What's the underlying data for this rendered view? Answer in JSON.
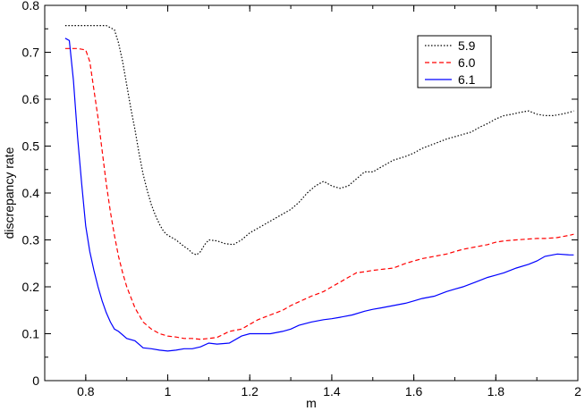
{
  "chart_data": {
    "type": "line",
    "xlabel": "m",
    "ylabel": "discrepancy rate",
    "xlim": [
      0.7,
      2.0
    ],
    "ylim": [
      0,
      0.8
    ],
    "xticks": [
      0.8,
      1.0,
      1.2,
      1.4,
      1.6,
      1.8,
      2.0
    ],
    "xtick_labels": [
      "0.8",
      "1",
      "1.2",
      "1.4",
      "1.6",
      "1.8",
      "2"
    ],
    "yticks": [
      0,
      0.1,
      0.2,
      0.3,
      0.4,
      0.5,
      0.6,
      0.7,
      0.8
    ],
    "ytick_labels": [
      "0",
      "0.1",
      "0.2",
      "0.3",
      "0.4",
      "0.5",
      "0.6",
      "0.7",
      "0.8"
    ],
    "grid": false,
    "legend_position": "top-right",
    "series": [
      {
        "name": "5.9",
        "color": "#000000",
        "dash": "dotted",
        "x": [
          0.75,
          0.78,
          0.82,
          0.85,
          0.87,
          0.88,
          0.89,
          0.9,
          0.91,
          0.92,
          0.93,
          0.94,
          0.95,
          0.96,
          0.97,
          0.98,
          0.99,
          1.0,
          1.01,
          1.02,
          1.03,
          1.04,
          1.05,
          1.06,
          1.07,
          1.08,
          1.09,
          1.1,
          1.12,
          1.14,
          1.16,
          1.18,
          1.2,
          1.22,
          1.25,
          1.28,
          1.3,
          1.32,
          1.34,
          1.36,
          1.38,
          1.4,
          1.42,
          1.44,
          1.46,
          1.48,
          1.5,
          1.52,
          1.55,
          1.58,
          1.6,
          1.62,
          1.65,
          1.68,
          1.7,
          1.72,
          1.74,
          1.76,
          1.78,
          1.8,
          1.82,
          1.84,
          1.86,
          1.88,
          1.9,
          1.92,
          1.94,
          1.96,
          1.98,
          1.99
        ],
        "y": [
          0.757,
          0.757,
          0.757,
          0.757,
          0.748,
          0.72,
          0.68,
          0.63,
          0.58,
          0.535,
          0.485,
          0.44,
          0.405,
          0.375,
          0.352,
          0.333,
          0.318,
          0.31,
          0.305,
          0.3,
          0.293,
          0.286,
          0.28,
          0.272,
          0.268,
          0.275,
          0.29,
          0.3,
          0.298,
          0.292,
          0.29,
          0.3,
          0.315,
          0.325,
          0.34,
          0.355,
          0.365,
          0.38,
          0.4,
          0.415,
          0.425,
          0.415,
          0.41,
          0.415,
          0.43,
          0.445,
          0.445,
          0.455,
          0.47,
          0.478,
          0.485,
          0.495,
          0.505,
          0.515,
          0.52,
          0.525,
          0.53,
          0.54,
          0.548,
          0.558,
          0.565,
          0.568,
          0.572,
          0.575,
          0.568,
          0.565,
          0.565,
          0.568,
          0.572,
          0.575
        ]
      },
      {
        "name": "6.0",
        "color": "#ff0000",
        "dash": "dashed",
        "x": [
          0.75,
          0.78,
          0.8,
          0.81,
          0.82,
          0.83,
          0.84,
          0.85,
          0.86,
          0.87,
          0.88,
          0.89,
          0.9,
          0.92,
          0.94,
          0.96,
          0.98,
          1.0,
          1.02,
          1.04,
          1.06,
          1.08,
          1.1,
          1.12,
          1.15,
          1.18,
          1.2,
          1.22,
          1.25,
          1.28,
          1.3,
          1.32,
          1.35,
          1.38,
          1.4,
          1.42,
          1.44,
          1.46,
          1.48,
          1.5,
          1.55,
          1.58,
          1.6,
          1.62,
          1.65,
          1.68,
          1.7,
          1.72,
          1.75,
          1.78,
          1.8,
          1.82,
          1.85,
          1.88,
          1.9,
          1.92,
          1.95,
          1.98,
          1.99
        ],
        "y": [
          0.708,
          0.708,
          0.705,
          0.68,
          0.62,
          0.56,
          0.49,
          0.42,
          0.36,
          0.31,
          0.265,
          0.23,
          0.2,
          0.155,
          0.125,
          0.11,
          0.1,
          0.095,
          0.093,
          0.09,
          0.09,
          0.088,
          0.09,
          0.092,
          0.105,
          0.11,
          0.12,
          0.13,
          0.14,
          0.15,
          0.16,
          0.168,
          0.18,
          0.19,
          0.2,
          0.21,
          0.22,
          0.23,
          0.232,
          0.235,
          0.24,
          0.25,
          0.255,
          0.26,
          0.265,
          0.27,
          0.275,
          0.28,
          0.285,
          0.29,
          0.295,
          0.298,
          0.3,
          0.302,
          0.303,
          0.303,
          0.305,
          0.31,
          0.312
        ]
      },
      {
        "name": "6.1",
        "color": "#0000ff",
        "dash": "solid",
        "x": [
          0.75,
          0.76,
          0.77,
          0.78,
          0.79,
          0.8,
          0.81,
          0.82,
          0.83,
          0.84,
          0.85,
          0.86,
          0.87,
          0.88,
          0.9,
          0.92,
          0.94,
          0.96,
          0.98,
          1.0,
          1.02,
          1.04,
          1.06,
          1.08,
          1.1,
          1.12,
          1.15,
          1.18,
          1.2,
          1.22,
          1.25,
          1.28,
          1.3,
          1.32,
          1.35,
          1.38,
          1.4,
          1.42,
          1.45,
          1.48,
          1.5,
          1.52,
          1.55,
          1.58,
          1.6,
          1.62,
          1.65,
          1.68,
          1.7,
          1.72,
          1.75,
          1.78,
          1.8,
          1.82,
          1.85,
          1.88,
          1.9,
          1.92,
          1.95,
          1.98,
          1.99
        ],
        "y": [
          0.73,
          0.725,
          0.64,
          0.52,
          0.42,
          0.33,
          0.275,
          0.235,
          0.2,
          0.17,
          0.145,
          0.125,
          0.11,
          0.105,
          0.09,
          0.085,
          0.07,
          0.068,
          0.065,
          0.063,
          0.065,
          0.068,
          0.068,
          0.072,
          0.08,
          0.078,
          0.08,
          0.095,
          0.1,
          0.1,
          0.1,
          0.105,
          0.11,
          0.118,
          0.125,
          0.13,
          0.132,
          0.135,
          0.14,
          0.148,
          0.152,
          0.155,
          0.16,
          0.165,
          0.17,
          0.175,
          0.18,
          0.19,
          0.195,
          0.2,
          0.21,
          0.22,
          0.225,
          0.23,
          0.24,
          0.248,
          0.255,
          0.265,
          0.27,
          0.268,
          0.268
        ]
      }
    ]
  }
}
